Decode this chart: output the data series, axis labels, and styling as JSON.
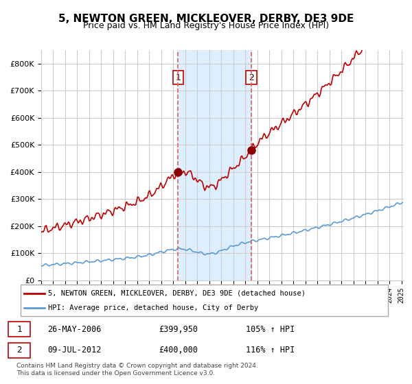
{
  "title": "5, NEWTON GREEN, MICKLEOVER, DERBY, DE3 9DE",
  "subtitle": "Price paid vs. HM Land Registry's House Price Index (HPI)",
  "legend_line1": "5, NEWTON GREEN, MICKLEOVER, DERBY, DE3 9DE (detached house)",
  "legend_line2": "HPI: Average price, detached house, City of Derby",
  "annotation1_label": "1",
  "annotation1_date": "26-MAY-2006",
  "annotation1_price": "£399,950",
  "annotation1_hpi": "105% ↑ HPI",
  "annotation2_label": "2",
  "annotation2_date": "09-JUL-2012",
  "annotation2_price": "£400,000",
  "annotation2_hpi": "116% ↑ HPI",
  "footer": "Contains HM Land Registry data © Crown copyright and database right 2024.\nThis data is licensed under the Open Government Licence v3.0.",
  "hpi_color": "#5b9bd5",
  "price_color": "#c00000",
  "marker_color": "#8b0000",
  "vline_color": "#e06060",
  "shade_color": "#ddeeff",
  "background_color": "#ffffff",
  "grid_color": "#cccccc",
  "ylim": [
    0,
    850000
  ],
  "x_start_year": 1995,
  "x_end_year": 2025,
  "sale1_year": 2006.4,
  "sale2_year": 2012.5,
  "sale1_price": 399950,
  "sale2_price": 400000
}
